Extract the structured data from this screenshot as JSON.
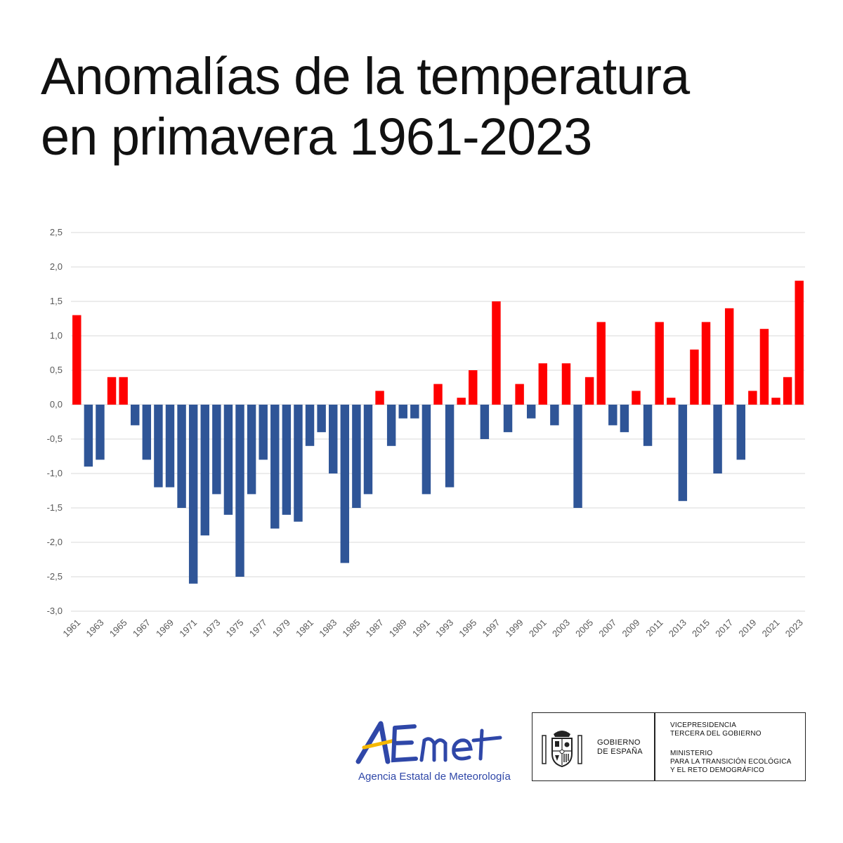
{
  "header": {
    "title_line1": "Anomalías de la temperatura",
    "title_line2": "en primavera 1961-2023"
  },
  "chart_data": {
    "type": "bar",
    "title": "Anomalías de la temperatura en primavera 1961-2023",
    "xlabel": "",
    "ylabel": "",
    "ylim": [
      -3.0,
      2.5
    ],
    "y_ticks": [
      "2,5",
      "2,0",
      "1,5",
      "1,0",
      "0,5",
      "0,0",
      "-0,5",
      "-1,0",
      "-1,5",
      "-2,0",
      "-2,5",
      "-3,0"
    ],
    "y_tick_values": [
      2.5,
      2.0,
      1.5,
      1.0,
      0.5,
      0.0,
      -0.5,
      -1.0,
      -1.5,
      -2.0,
      -2.5,
      -3.0
    ],
    "x_tick_labels": [
      "1961",
      "1963",
      "1965",
      "1967",
      "1969",
      "1971",
      "1973",
      "1975",
      "1977",
      "1979",
      "1981",
      "1983",
      "1985",
      "1987",
      "1989",
      "1991",
      "1993",
      "1995",
      "1997",
      "1999",
      "2001",
      "2003",
      "2005",
      "2007",
      "2009",
      "2011",
      "2013",
      "2015",
      "2017",
      "2019",
      "2021",
      "2023"
    ],
    "grid": true,
    "positive_color": "#ff0000",
    "negative_color": "#2f5597",
    "categories": [
      1961,
      1962,
      1963,
      1964,
      1965,
      1966,
      1967,
      1968,
      1969,
      1970,
      1971,
      1972,
      1973,
      1974,
      1975,
      1976,
      1977,
      1978,
      1979,
      1980,
      1981,
      1982,
      1983,
      1984,
      1985,
      1986,
      1987,
      1988,
      1989,
      1990,
      1991,
      1992,
      1993,
      1994,
      1995,
      1996,
      1997,
      1998,
      1999,
      2000,
      2001,
      2002,
      2003,
      2004,
      2005,
      2006,
      2007,
      2008,
      2009,
      2010,
      2011,
      2012,
      2013,
      2014,
      2015,
      2016,
      2017,
      2018,
      2019,
      2020,
      2021,
      2022,
      2023
    ],
    "values": [
      1.3,
      -0.9,
      -0.8,
      0.4,
      0.4,
      -0.3,
      -0.8,
      -1.2,
      -1.2,
      -1.5,
      -2.6,
      -1.9,
      -1.3,
      -1.6,
      -2.5,
      -1.3,
      -0.8,
      -1.8,
      -1.6,
      -1.7,
      -0.6,
      -0.4,
      -1.0,
      -2.3,
      -1.5,
      -1.3,
      0.2,
      -0.6,
      -0.2,
      -0.2,
      -1.3,
      0.3,
      -1.2,
      0.1,
      0.5,
      -0.5,
      1.5,
      -0.4,
      0.3,
      -0.2,
      0.6,
      -0.3,
      0.6,
      -1.5,
      0.4,
      1.2,
      -0.3,
      -0.4,
      0.2,
      -0.6,
      1.2,
      0.1,
      -1.4,
      0.8,
      1.2,
      -1.0,
      1.4,
      -0.8,
      0.2,
      1.1,
      0.1,
      0.4,
      1.8
    ]
  },
  "logos": {
    "aemet_text": "Agencia Estatal de Meteorología",
    "aemet_blue": "#2f47a8",
    "aemet_yellow": "#f5b800",
    "gov_line1": "GOBIERNO",
    "gov_line2": "DE ESPAÑA",
    "vice_line1": "VICEPRESIDENCIA",
    "vice_line2": "TERCERA DEL GOBIERNO",
    "min_line1": "MINISTERIO",
    "min_line2": "PARA LA TRANSICIÓN ECOLÓGICA",
    "min_line3": "Y EL RETO DEMOGRÁFICO",
    "seal_icon": "coat-of-arms-icon"
  }
}
